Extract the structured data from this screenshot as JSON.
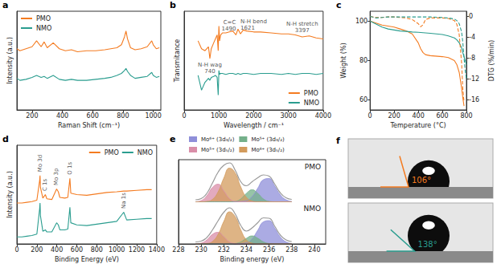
{
  "chart_data": [
    {
      "panel_label": "a",
      "type": "line",
      "x_label": "Raman Shift (cm⁻¹)",
      "y_label": "Intensity (a.u.)",
      "xlim": [
        100,
        1050
      ],
      "xticks": [
        200,
        400,
        600,
        800,
        1000
      ],
      "ylim": [
        0,
        1
      ],
      "tick_labels": "x",
      "legend": "top-left",
      "x": [
        100,
        120,
        160,
        200,
        230,
        260,
        280,
        300,
        340,
        380,
        420,
        460,
        500,
        560,
        620,
        680,
        720,
        760,
        790,
        810,
        820,
        830,
        850,
        880,
        920,
        960,
        990,
        1000,
        1020,
        1040
      ],
      "series": [
        {
          "name": "PMO",
          "color": "#f47b20",
          "values": [
            0.62,
            0.6,
            0.62,
            0.64,
            0.7,
            0.64,
            0.69,
            0.63,
            0.68,
            0.62,
            0.6,
            0.61,
            0.59,
            0.6,
            0.6,
            0.61,
            0.62,
            0.63,
            0.66,
            0.74,
            0.8,
            0.72,
            0.63,
            0.61,
            0.62,
            0.64,
            0.7,
            0.66,
            0.62,
            0.63
          ]
        },
        {
          "name": "NMO",
          "color": "#2a9d8f",
          "values": [
            0.32,
            0.3,
            0.31,
            0.33,
            0.35,
            0.33,
            0.34,
            0.32,
            0.35,
            0.31,
            0.3,
            0.31,
            0.3,
            0.3,
            0.31,
            0.32,
            0.33,
            0.35,
            0.37,
            0.4,
            0.42,
            0.39,
            0.35,
            0.32,
            0.33,
            0.34,
            0.38,
            0.35,
            0.33,
            0.34
          ]
        }
      ]
    },
    {
      "panel_label": "b",
      "type": "line",
      "x_label": "Wavelength / cm⁻¹",
      "y_label": "Transmitance",
      "xlim": [
        0,
        4000
      ],
      "xticks": [
        0,
        1000,
        2000,
        3000,
        4000
      ],
      "ylim": [
        0.1,
        1.1
      ],
      "tick_labels": "x",
      "legend": "bottom-right",
      "x": [
        400,
        500,
        600,
        700,
        740,
        780,
        850,
        900,
        950,
        980,
        1000,
        1020,
        1050,
        1100,
        1200,
        1300,
        1400,
        1490,
        1550,
        1621,
        1700,
        1800,
        2000,
        2200,
        2500,
        2800,
        3000,
        3200,
        3397,
        3600,
        3800,
        4000
      ],
      "series": [
        {
          "name": "PMO",
          "color": "#f47b20",
          "values": [
            0.8,
            0.72,
            0.7,
            0.74,
            0.62,
            0.72,
            0.78,
            0.82,
            0.86,
            0.7,
            0.95,
            0.8,
            0.86,
            0.88,
            0.88,
            0.89,
            0.9,
            0.86,
            0.92,
            0.87,
            0.91,
            0.9,
            0.89,
            0.89,
            0.88,
            0.87,
            0.87,
            0.86,
            0.84,
            0.85,
            0.83,
            0.82
          ]
        },
        {
          "name": "NMO",
          "color": "#2a9d8f",
          "values": [
            0.45,
            0.3,
            0.38,
            0.42,
            0.4,
            0.43,
            0.44,
            0.45,
            0.43,
            0.25,
            0.5,
            0.46,
            0.47,
            0.47,
            0.46,
            0.47,
            0.47,
            0.46,
            0.47,
            0.46,
            0.47,
            0.47,
            0.46,
            0.47,
            0.47,
            0.46,
            0.47,
            0.46,
            0.47,
            0.47,
            0.46,
            0.47
          ]
        }
      ],
      "annotations": [
        {
          "text": "N-H wag\n740",
          "x": 740,
          "y": 0.62
        },
        {
          "text": "C=C\n1490",
          "x": 1490,
          "y": 0.86
        },
        {
          "text": "N-H bend\n1621",
          "x": 1621,
          "y": 0.87
        },
        {
          "text": "N-H stretch\n3397",
          "x": 3397,
          "y": 0.84
        }
      ]
    },
    {
      "panel_label": "c",
      "type": "line",
      "x_label": "Temperature (°C)",
      "y_label": "Weight (%)",
      "y2_label": "DTG (%/min)",
      "xlim": [
        0,
        800
      ],
      "xticks": [
        0,
        200,
        400,
        600,
        800
      ],
      "ylim": [
        55,
        105
      ],
      "yticks": [
        60,
        80,
        100
      ],
      "y2lim": [
        -18,
        1
      ],
      "y2ticks": [
        0,
        -4,
        -8,
        -12,
        -16
      ],
      "x": [
        0,
        50,
        100,
        150,
        200,
        250,
        300,
        350,
        400,
        420,
        440,
        460,
        500,
        600,
        650,
        700,
        720,
        740,
        760,
        770,
        780,
        790,
        800
      ],
      "series": [
        {
          "color": "#f47b20",
          "values": [
            100,
            99,
            98,
            97.5,
            97,
            96,
            95,
            93.5,
            89,
            86,
            84,
            83,
            82.5,
            82,
            81.5,
            80,
            78,
            74,
            66,
            61,
            57,
            null,
            null
          ]
        },
        {
          "color": "#2a9d8f",
          "values": [
            100,
            98.5,
            97,
            96,
            95.5,
            95,
            94.8,
            94.5,
            94.3,
            94.2,
            94.1,
            94,
            93.8,
            93.2,
            92.5,
            91.5,
            90.5,
            89,
            86.5,
            84,
            82,
            80,
            78
          ]
        },
        {
          "color": "#f47b20",
          "axis": "y2",
          "line_style": "dashed",
          "values": [
            0,
            -0.2,
            -0.2,
            -0.1,
            -0.1,
            -0.2,
            -0.3,
            -0.6,
            -1.4,
            -2,
            -1.6,
            -0.6,
            -0.3,
            -0.3,
            -0.4,
            -0.8,
            -1.5,
            -3.5,
            -9,
            -14,
            -16.5,
            null,
            null
          ]
        },
        {
          "color": "#2a9d8f",
          "axis": "y2",
          "line_style": "dashed",
          "values": [
            0,
            -0.3,
            -0.2,
            -0.1,
            -0.1,
            -0.1,
            -0.1,
            -0.1,
            -0.1,
            -0.1,
            -0.1,
            -0.1,
            -0.1,
            -0.2,
            -0.3,
            -0.5,
            -0.8,
            -1.4,
            -3,
            -5,
            -8,
            -10.5,
            -12
          ]
        }
      ]
    },
    {
      "panel_label": "d",
      "type": "line",
      "x_label": "Binding Energy (eV)",
      "y_label": "Intensity (a.u.)",
      "xlim": [
        0,
        1400
      ],
      "xticks": [
        0,
        200,
        400,
        600,
        800,
        1000,
        1200,
        1400
      ],
      "ylim": [
        0,
        1.4
      ],
      "tick_labels": "x",
      "legend": "top-right",
      "x": [
        0,
        50,
        100,
        150,
        200,
        228,
        232,
        236,
        260,
        285,
        300,
        350,
        398,
        415,
        430,
        480,
        510,
        531,
        540,
        600,
        700,
        800,
        900,
        1000,
        1070,
        1100,
        1200,
        1300,
        1350
      ],
      "series": [
        {
          "name": "PMO",
          "color": "#f47b20",
          "values": [
            0.58,
            0.58,
            0.59,
            0.6,
            0.62,
            0.9,
            0.97,
            0.8,
            0.65,
            0.7,
            0.64,
            0.63,
            0.78,
            0.74,
            0.66,
            0.65,
            0.66,
            0.93,
            0.72,
            0.7,
            0.69,
            0.71,
            0.73,
            0.74,
            0.75,
            0.75,
            0.76,
            0.77,
            0.77
          ]
        },
        {
          "name": "NMO",
          "color": "#2a9d8f",
          "values": [
            0.1,
            0.1,
            0.11,
            0.12,
            0.14,
            0.5,
            0.58,
            0.4,
            0.18,
            0.2,
            0.17,
            0.17,
            0.3,
            0.27,
            0.2,
            0.2,
            0.21,
            0.52,
            0.3,
            0.27,
            0.26,
            0.28,
            0.3,
            0.32,
            0.45,
            0.34,
            0.35,
            0.36,
            0.36
          ]
        }
      ],
      "annotations": [
        {
          "text": "C 1s",
          "x": 285,
          "y": 0.7
        },
        {
          "text": "Mo 3d",
          "x": 232,
          "y": 0.97
        },
        {
          "text": "Mo 3p",
          "x": 398,
          "y": 0.78
        },
        {
          "text": "O 1s",
          "x": 531,
          "y": 0.93
        },
        {
          "text": "Na 1s",
          "x": 1070,
          "y": 0.45
        }
      ]
    },
    {
      "panel_label": "e",
      "type": "area",
      "x_label": "Binding energy (eV)",
      "xlim": [
        228,
        241
      ],
      "xticks": [
        228,
        230,
        232,
        234,
        236,
        238,
        240
      ],
      "tick_labels": "x",
      "legend": "top",
      "x": [
        229.5,
        230,
        230.5,
        231,
        231.5,
        232,
        232.5,
        233,
        233.5,
        234,
        234.5,
        235,
        235.5,
        236,
        236.5,
        237,
        237.5,
        238
      ],
      "subplots": [
        {
          "label": "PMO",
          "ylim": [
            0,
            1.05
          ],
          "series": [
            {
              "name": "Mo⁶⁺ (3d₃/₂)",
              "color": "#8f8fd9",
              "values": [
                0,
                0,
                0,
                0,
                0,
                0,
                0,
                0,
                0.01,
                0.03,
                0.13,
                0.34,
                0.55,
                0.58,
                0.39,
                0.17,
                0.05,
                0.01
              ]
            },
            {
              "name": "Mo⁵⁺ (3d₃/₂)",
              "color": "#74b08a",
              "values": [
                0,
                0,
                0,
                0,
                0,
                0,
                0,
                0.01,
                0.07,
                0.21,
                0.3,
                0.21,
                0.07,
                0.01,
                0,
                0,
                0,
                0
              ]
            },
            {
              "name": "Mo⁵⁺ (3d₅/₂)",
              "color": "#d98ea8",
              "values": [
                0,
                0.03,
                0.15,
                0.36,
                0.44,
                0.27,
                0.08,
                0.01,
                0,
                0,
                0,
                0,
                0,
                0,
                0,
                0,
                0,
                0
              ]
            },
            {
              "name": "Mo⁶⁺ (3d₅/₂)",
              "color": "#d39b5c",
              "values": [
                0,
                0,
                0.01,
                0.06,
                0.25,
                0.59,
                0.84,
                0.72,
                0.37,
                0.11,
                0.02,
                0,
                0,
                0,
                0,
                0,
                0,
                0
              ]
            },
            {
              "color": "#9a9a9a",
              "values": [
                0.05,
                0.08,
                0.21,
                0.47,
                0.74,
                0.91,
                0.97,
                0.79,
                0.5,
                0.4,
                0.5,
                0.6,
                0.67,
                0.64,
                0.44,
                0.22,
                0.1,
                0.06
              ]
            }
          ]
        },
        {
          "label": "NMO",
          "ylim": [
            0,
            1.05
          ],
          "series": [
            {
              "name": "Mo⁶⁺ (3d₃/₂)",
              "color": "#8f8fd9",
              "values": [
                0,
                0,
                0,
                0,
                0,
                0,
                0,
                0,
                0.01,
                0.03,
                0.13,
                0.34,
                0.55,
                0.58,
                0.39,
                0.17,
                0.05,
                0.01
              ]
            },
            {
              "name": "Mo⁵⁺ (3d₃/₂)",
              "color": "#74b08a",
              "values": [
                0,
                0,
                0,
                0,
                0,
                0,
                0,
                0.01,
                0.05,
                0.14,
                0.2,
                0.14,
                0.05,
                0.01,
                0,
                0,
                0,
                0
              ]
            },
            {
              "name": "Mo⁵⁺ (3d₅/₂)",
              "color": "#d98ea8",
              "values": [
                0,
                0.02,
                0.1,
                0.24,
                0.29,
                0.18,
                0.05,
                0.01,
                0,
                0,
                0,
                0,
                0,
                0,
                0,
                0,
                0,
                0
              ]
            },
            {
              "name": "Mo⁶⁺ (3d₅/₂)",
              "color": "#d39b5c",
              "values": [
                0,
                0,
                0.01,
                0.06,
                0.24,
                0.56,
                0.8,
                0.68,
                0.35,
                0.1,
                0.02,
                0,
                0,
                0,
                0,
                0,
                0,
                0
              ]
            },
            {
              "color": "#9a9a9a",
              "values": [
                0.05,
                0.07,
                0.16,
                0.35,
                0.58,
                0.79,
                0.9,
                0.75,
                0.46,
                0.32,
                0.4,
                0.53,
                0.65,
                0.64,
                0.44,
                0.22,
                0.1,
                0.06
              ]
            }
          ]
        }
      ]
    }
  ],
  "photos": {
    "panel_label": "f",
    "droplets": [
      {
        "contact_angle": {
          "value": 106,
          "label": "106°"
        },
        "color": "#f47b20"
      },
      {
        "contact_angle": {
          "value": 138,
          "label": "138°"
        },
        "color": "#2a9d8f"
      }
    ]
  }
}
